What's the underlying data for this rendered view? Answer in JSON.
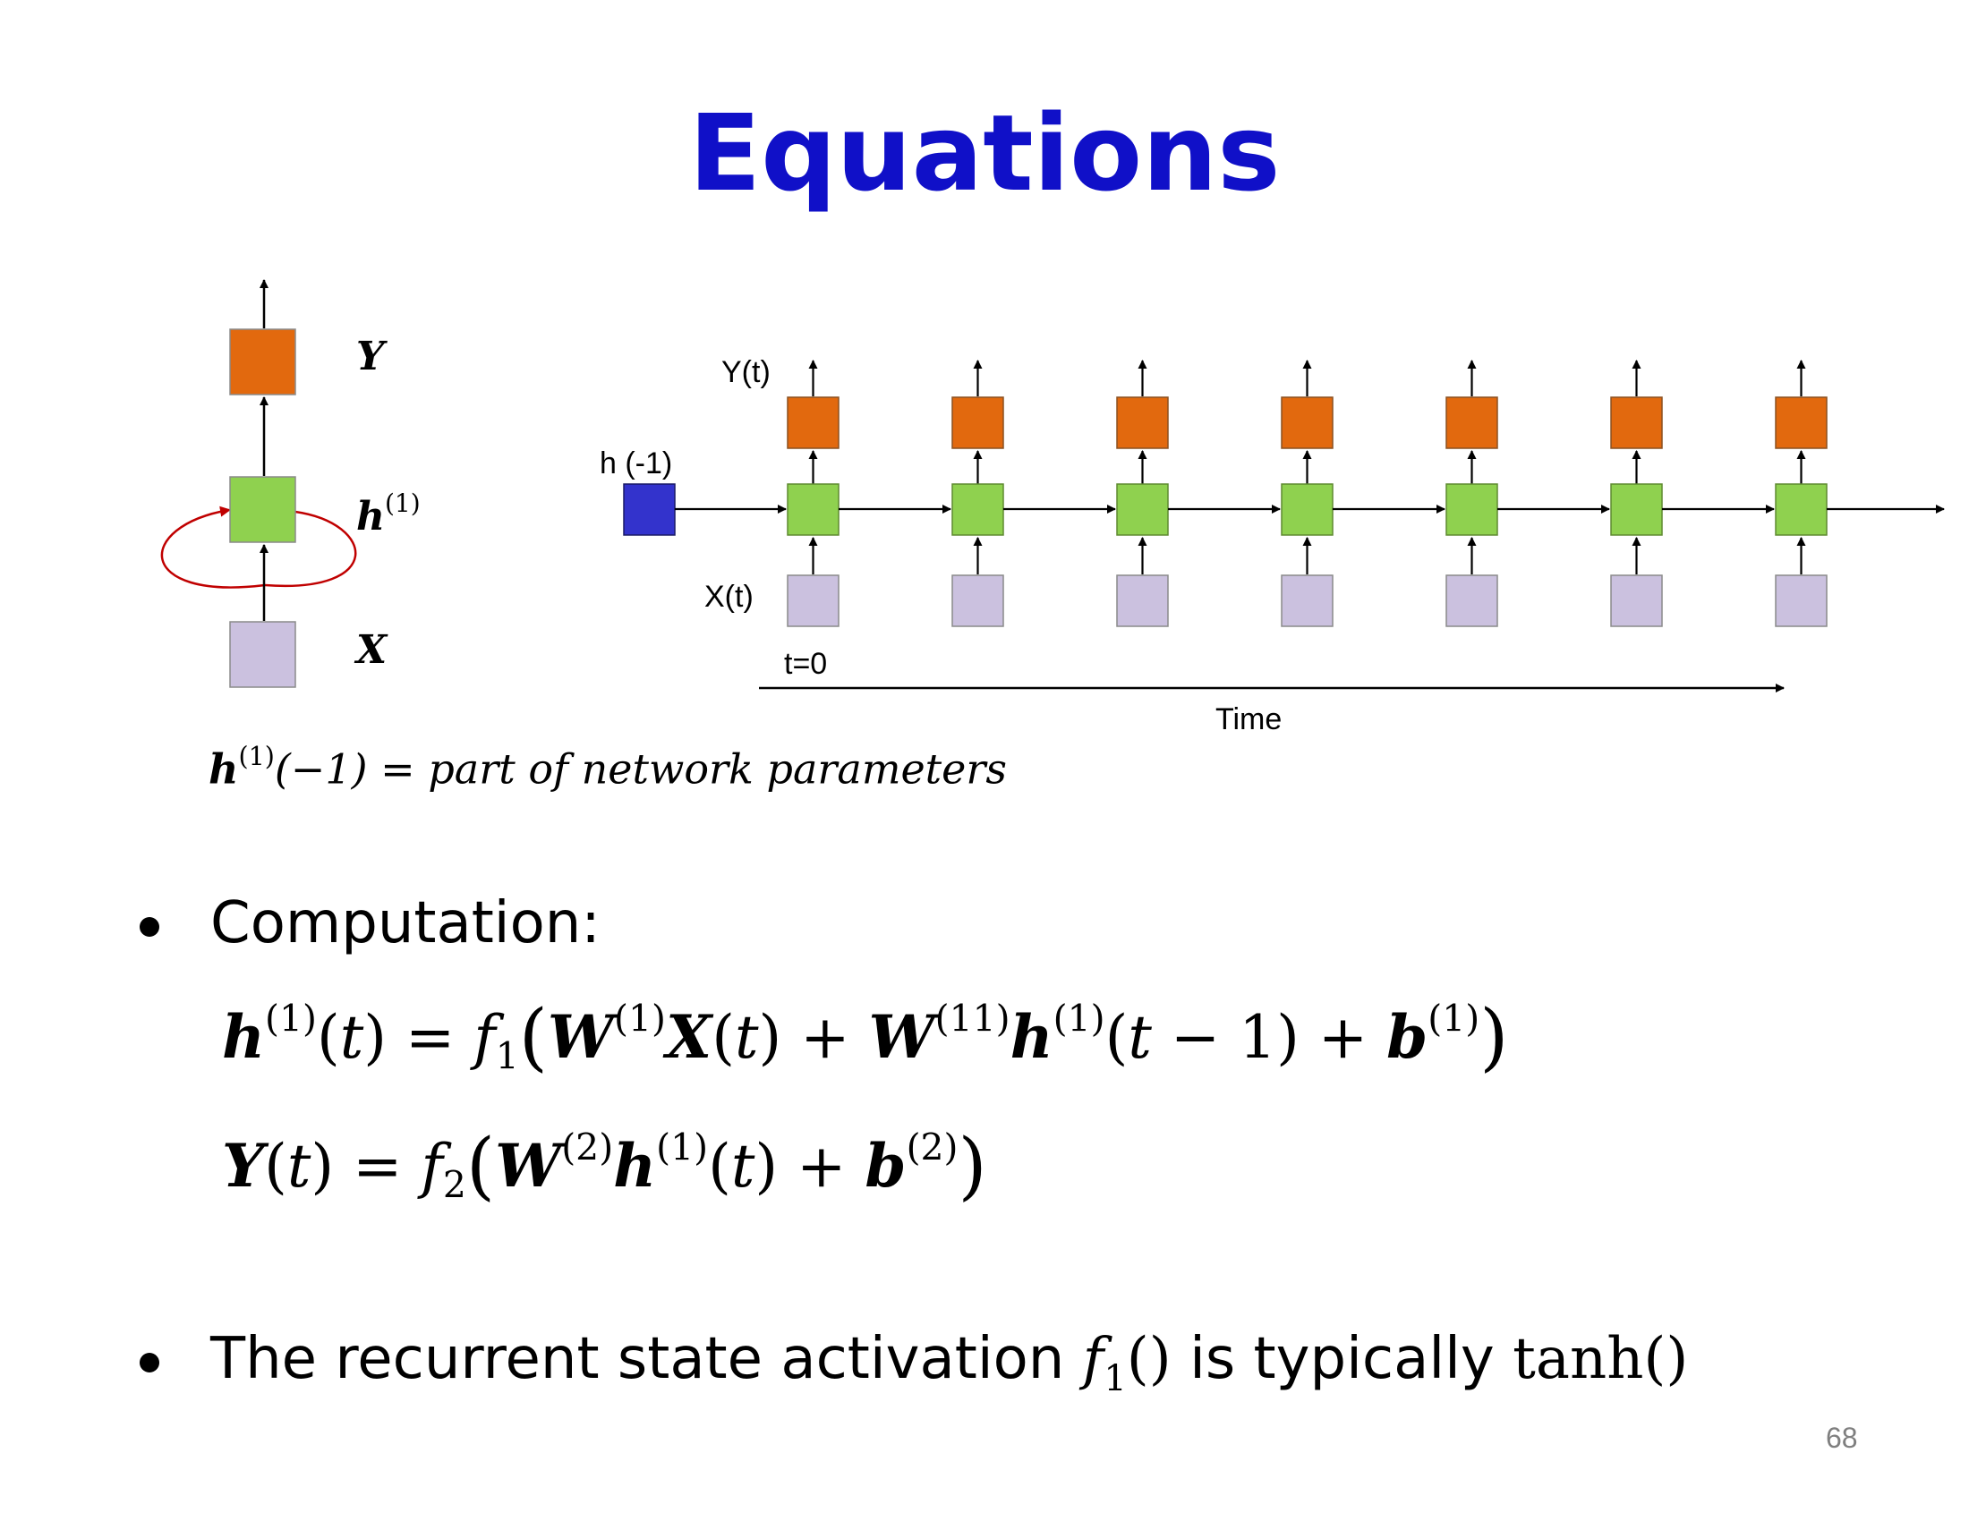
{
  "slide": {
    "title": "Equations",
    "page_number": "68"
  },
  "left_diagram": {
    "label_y": "Y",
    "label_h": "h",
    "label_h_sup": "(1)",
    "label_x": "X"
  },
  "right_diagram": {
    "label_yt": "Y(t)",
    "label_h_init": "h (-1)",
    "label_xt": "X(t)",
    "label_t0": "t=0",
    "label_time": "Time",
    "steps": 7
  },
  "note": {
    "h": "h",
    "sup": "(1)",
    "rest": "(−1) = part of network parameters"
  },
  "bullets": [
    {
      "text": "Computation:"
    },
    {
      "prefix": "The recurrent state activation ",
      "f": "f",
      "f_sub": "1",
      "f_paren": "()",
      "middle": " is typically ",
      "tanh": "tanh()"
    }
  ],
  "colors": {
    "title": "#1010c8",
    "output": "#e2690e",
    "hidden": "#8fd14f",
    "input": "#cbc1df",
    "initial": "#3333cc",
    "recurrence": "#c00000"
  }
}
